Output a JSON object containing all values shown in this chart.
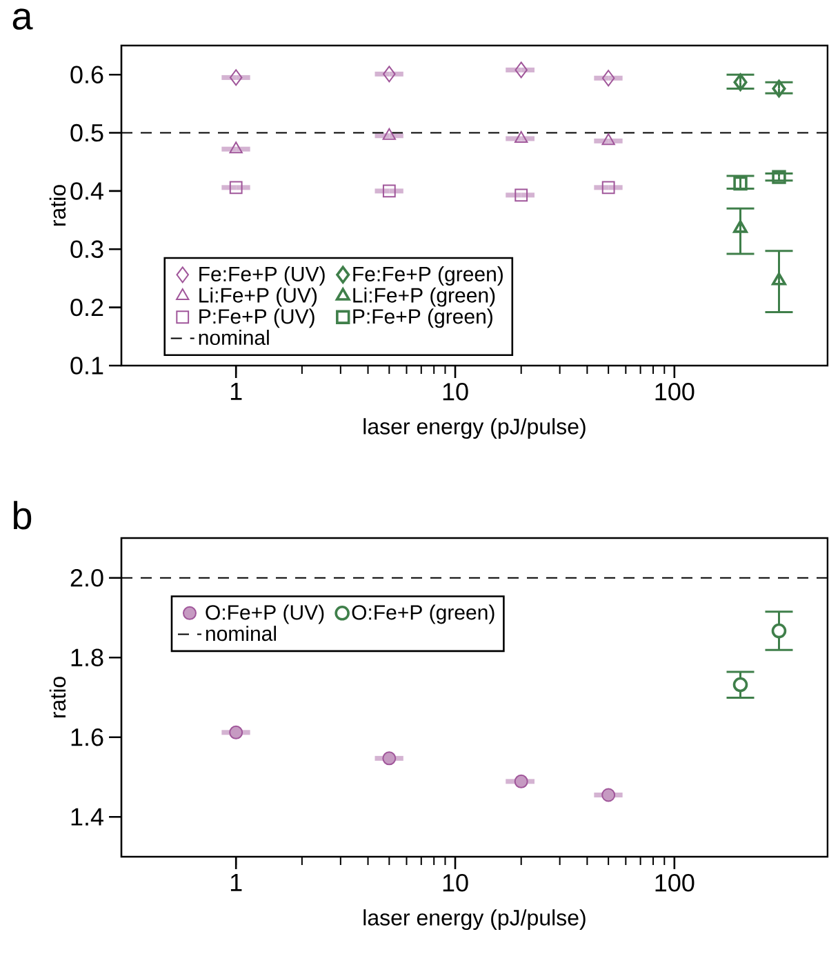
{
  "chart_data": [
    {
      "type": "scatter",
      "title": "a",
      "xlabel": "laser energy (pJ/pulse)",
      "ylabel": "ratio",
      "log": "x",
      "xlim": [
        0.3,
        500
      ],
      "xticks": [
        1,
        10,
        100
      ],
      "ylim": [
        0.1,
        0.65
      ],
      "yticks": [
        0.1,
        0.2,
        0.3,
        0.4,
        0.5,
        0.6
      ],
      "grid": false,
      "legend": "bottom left",
      "ref_lines": [
        {
          "axis": "y",
          "value": 0.5,
          "label": "nominal",
          "line_style": "dashed",
          "color": "#000000"
        }
      ],
      "series": [
        {
          "name": "Fe:Fe+P (UV)",
          "color": "#a0569a",
          "marker": "diamond",
          "x": [
            1,
            5,
            20,
            50
          ],
          "values": [
            0.595,
            0.601,
            0.608,
            0.594
          ],
          "xerrors": [
            [
              0.86,
              1.16
            ],
            [
              4.3,
              5.8
            ],
            [
              17,
              23
            ],
            [
              43,
              58
            ]
          ]
        },
        {
          "name": "Fe:Fe+P (green)",
          "color": "#3f7f4a",
          "marker": "diamond",
          "x": [
            200,
            300
          ],
          "values": [
            0.587,
            0.576
          ],
          "errors": [
            [
              0.576,
              0.6
            ],
            [
              0.568,
              0.587
            ]
          ]
        },
        {
          "name": "Li:Fe+P (UV)",
          "color": "#a0569a",
          "marker": "triangle",
          "x": [
            1,
            5,
            20,
            50
          ],
          "values": [
            0.472,
            0.495,
            0.49,
            0.486
          ],
          "xerrors": [
            [
              0.86,
              1.16
            ],
            [
              4.3,
              5.8
            ],
            [
              17,
              23
            ],
            [
              43,
              58
            ]
          ]
        },
        {
          "name": "Li:Fe+P (green)",
          "color": "#3f7f4a",
          "marker": "triangle",
          "x": [
            200,
            300
          ],
          "values": [
            0.336,
            0.246
          ],
          "errors": [
            [
              0.292,
              0.37
            ],
            [
              0.192,
              0.297
            ]
          ]
        },
        {
          "name": "P:Fe+P (UV)",
          "color": "#a0569a",
          "marker": "square",
          "x": [
            1,
            5,
            20,
            50
          ],
          "values": [
            0.406,
            0.4,
            0.393,
            0.406
          ],
          "xerrors": [
            [
              0.86,
              1.16
            ],
            [
              4.3,
              5.8
            ],
            [
              17,
              23
            ],
            [
              43,
              58
            ]
          ]
        },
        {
          "name": "P:Fe+P (green)",
          "color": "#3f7f4a",
          "marker": "square",
          "x": [
            200,
            300
          ],
          "values": [
            0.413,
            0.424
          ],
          "errors": [
            [
              0.404,
              0.426
            ],
            [
              0.418,
              0.43
            ]
          ]
        }
      ]
    },
    {
      "type": "scatter",
      "title": "b",
      "xlabel": "laser energy (pJ/pulse)",
      "ylabel": "ratio",
      "log": "x",
      "xlim": [
        0.3,
        500
      ],
      "xticks": [
        1,
        10,
        100
      ],
      "ylim": [
        1.3,
        2.1
      ],
      "yticks": [
        {
          "value": 1.4,
          "label": "1.4"
        },
        {
          "value": 1.6,
          "label": "1.6"
        },
        {
          "value": 1.8,
          "label": "1.8"
        },
        {
          "value": 2.0,
          "label": "2.0"
        }
      ],
      "grid": false,
      "legend": "top left",
      "ref_lines": [
        {
          "axis": "y",
          "value": 2.0,
          "label": "nominal",
          "line_style": "dashed",
          "color": "#000000"
        }
      ],
      "series": [
        {
          "name": "O:Fe+P (UV)",
          "color": "#a0569a",
          "marker": "circle",
          "x": [
            1,
            5,
            20,
            50
          ],
          "values": [
            1.612,
            1.547,
            1.489,
            1.455
          ],
          "xerrors": [
            [
              0.86,
              1.16
            ],
            [
              4.3,
              5.8
            ],
            [
              17,
              23
            ],
            [
              43,
              58
            ]
          ]
        },
        {
          "name": "O:Fe+P (green)",
          "color": "#3f7f4a",
          "marker": "circle",
          "x": [
            200,
            300
          ],
          "values": [
            1.732,
            1.867
          ],
          "errors": [
            [
              1.699,
              1.764
            ],
            [
              1.819,
              1.915
            ]
          ]
        }
      ]
    }
  ]
}
